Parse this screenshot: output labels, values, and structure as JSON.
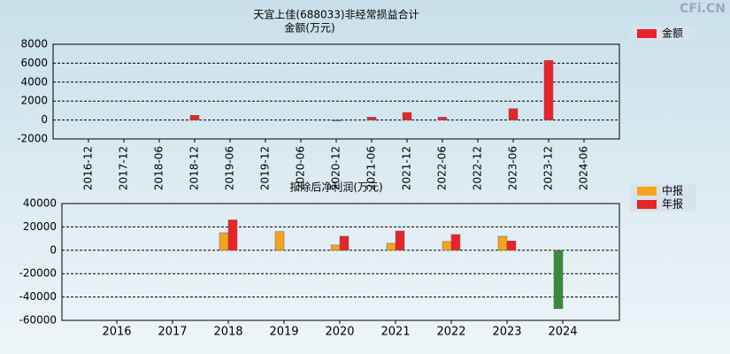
{
  "watermark": "CFi.CN",
  "chart_data": [
    {
      "type": "bar",
      "title": "天宜上佳(688033)非经常损益合计",
      "subtitle": "金额(万元)",
      "categories": [
        "2016-12",
        "2017-12",
        "2018-06",
        "2018-12",
        "2019-06",
        "2019-12",
        "2020-06",
        "2020-12",
        "2021-06",
        "2021-12",
        "2022-06",
        "2022-12",
        "2023-06",
        "2023-12",
        "2024-06"
      ],
      "series": [
        {
          "name": "金额",
          "color": "#e8232a",
          "values": [
            null,
            null,
            null,
            500,
            null,
            null,
            null,
            -100,
            300,
            800,
            300,
            null,
            1200,
            6300,
            null
          ]
        }
      ],
      "negative_color": "#3a8a3a",
      "ylim": [
        -2000,
        8000
      ],
      "yticks": [
        -2000,
        0,
        2000,
        4000,
        6000,
        8000
      ],
      "grid": true,
      "legend": "right"
    },
    {
      "type": "bar",
      "title": "扣除后净利润(万元)",
      "categories": [
        "2016",
        "2017",
        "2018",
        "2019",
        "2020",
        "2021",
        "2022",
        "2023",
        "2024"
      ],
      "series": [
        {
          "name": "中报",
          "color": "#f5a31a",
          "values": [
            null,
            null,
            15000,
            16000,
            4500,
            6000,
            7500,
            12000,
            -50000
          ]
        },
        {
          "name": "年报",
          "color": "#e8232a",
          "values": [
            null,
            null,
            26000,
            null,
            12000,
            16500,
            13500,
            8000,
            null
          ]
        }
      ],
      "negative_color": "#3a8a3a",
      "ylim": [
        -60000,
        40000
      ],
      "yticks": [
        -60000,
        -40000,
        -20000,
        0,
        20000,
        40000
      ],
      "grid": true,
      "legend": "right"
    }
  ]
}
